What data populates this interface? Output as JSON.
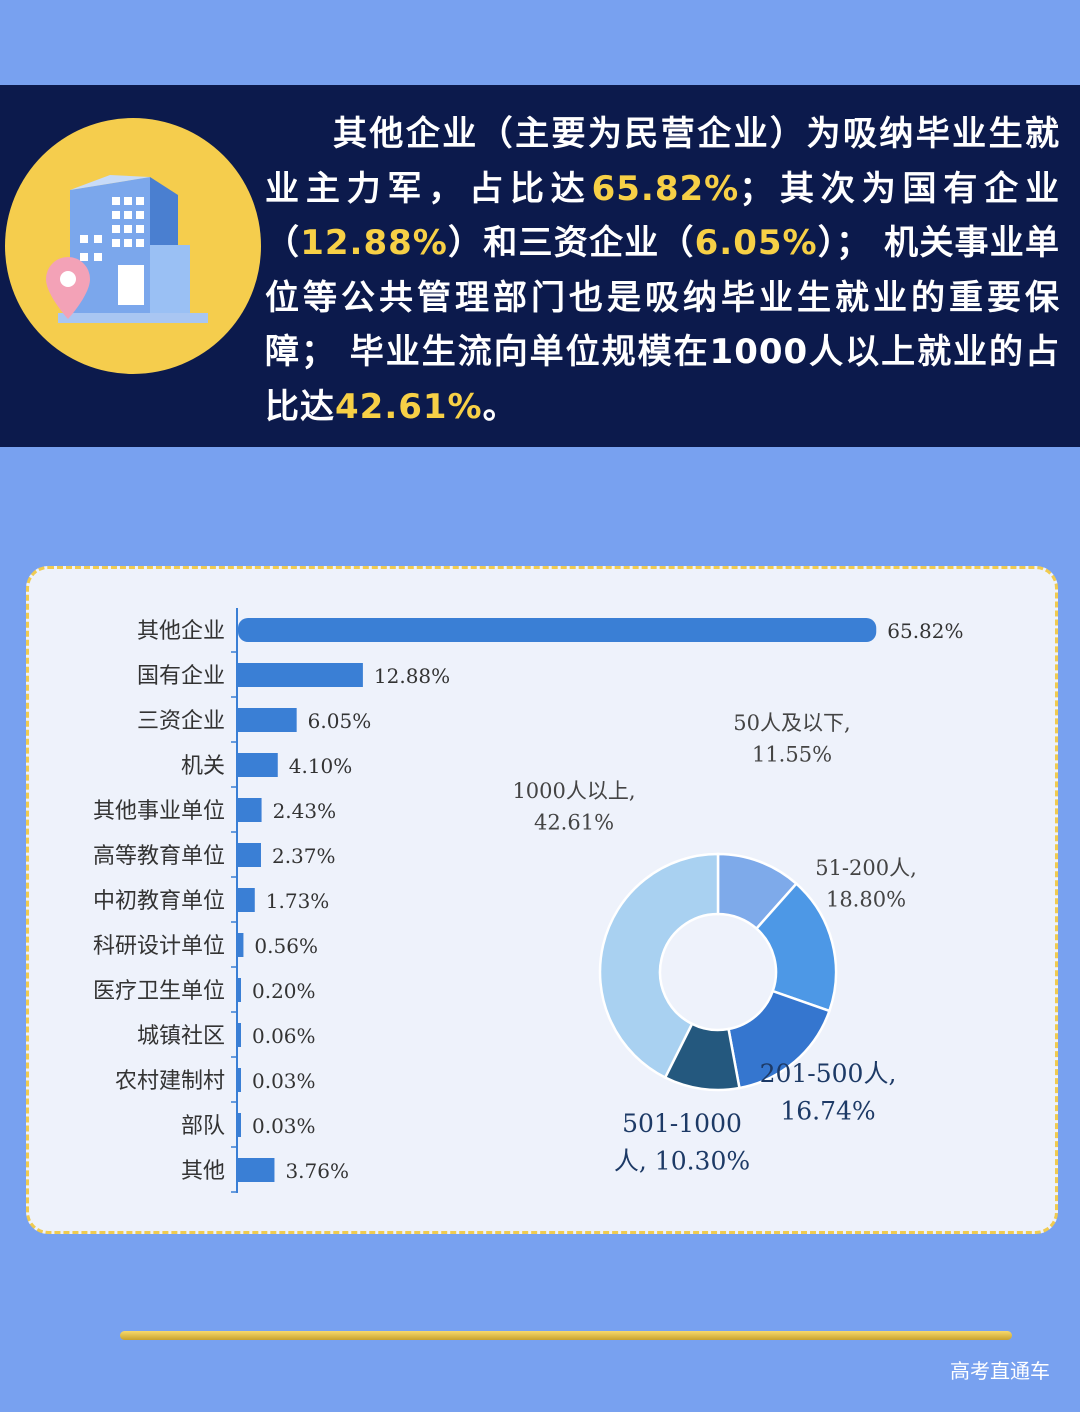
{
  "intro": {
    "segments": [
      {
        "text": "其他企业（主要为民营企业）为吸纳毕业生就业主力军，占比达",
        "hl": false
      },
      {
        "text": "65.82%",
        "hl": true
      },
      {
        "text": "；其次为国有企业（",
        "hl": false
      },
      {
        "text": "12.88%",
        "hl": true
      },
      {
        "text": "）和三资企业（",
        "hl": false
      },
      {
        "text": "6.05%",
        "hl": true
      },
      {
        "text": "）； 机关事业单位等公共管理部门也是吸纳毕业生就业的重要保障； 毕业生流向单位规模在1000人以上就业的占比达",
        "hl": false
      },
      {
        "text": "42.61%",
        "hl": true
      },
      {
        "text": "。",
        "hl": false
      }
    ],
    "icon": "building-location-icon"
  },
  "colors": {
    "page_bg": "#78a1f0",
    "banner_bg": "#0c1a4c",
    "highlight": "#f7d046",
    "circle": "#f5cd4d",
    "bar": "#3a7fd5",
    "card_bg": "#eef2fb"
  },
  "chart_data": [
    {
      "type": "bar",
      "orientation": "horizontal",
      "categories": [
        "其他企业",
        "国有企业",
        "三资企业",
        "机关",
        "其他事业单位",
        "高等教育单位",
        "中初教育单位",
        "科研设计单位",
        "医疗卫生单位",
        "城镇社区",
        "农村建制村",
        "部队",
        "其他"
      ],
      "values": [
        65.82,
        12.88,
        6.05,
        4.1,
        2.43,
        2.37,
        1.73,
        0.56,
        0.2,
        0.06,
        0.03,
        0.03,
        3.76
      ],
      "value_labels": [
        "65.82%",
        "12.88%",
        "6.05%",
        "4.10%",
        "2.43%",
        "2.37%",
        "1.73%",
        "0.56%",
        "0.20%",
        "0.06%",
        "0.03%",
        "0.03%",
        "3.76%"
      ],
      "unit": "%",
      "xlim": [
        0,
        66
      ]
    },
    {
      "type": "pie",
      "style": "donut",
      "slices": [
        {
          "label": "50人及以下,",
          "value_label": "11.55%",
          "value": 11.55,
          "color": "#7eaaea"
        },
        {
          "label": "51-200人,",
          "value_label": "18.80%",
          "value": 18.8,
          "color": "#4d98e6"
        },
        {
          "label": "201-500人,",
          "value_label": "16.74%",
          "value": 16.74,
          "color": "#3576cf"
        },
        {
          "label": "501-1000",
          "value_label": "人, 10.30%",
          "value": 10.3,
          "color": "#24587e"
        },
        {
          "label": "1000人以上,",
          "value_label": "42.61%",
          "value": 42.61,
          "color": "#a9d1f1"
        }
      ]
    }
  ],
  "footer": {
    "text": "高考直通车"
  }
}
